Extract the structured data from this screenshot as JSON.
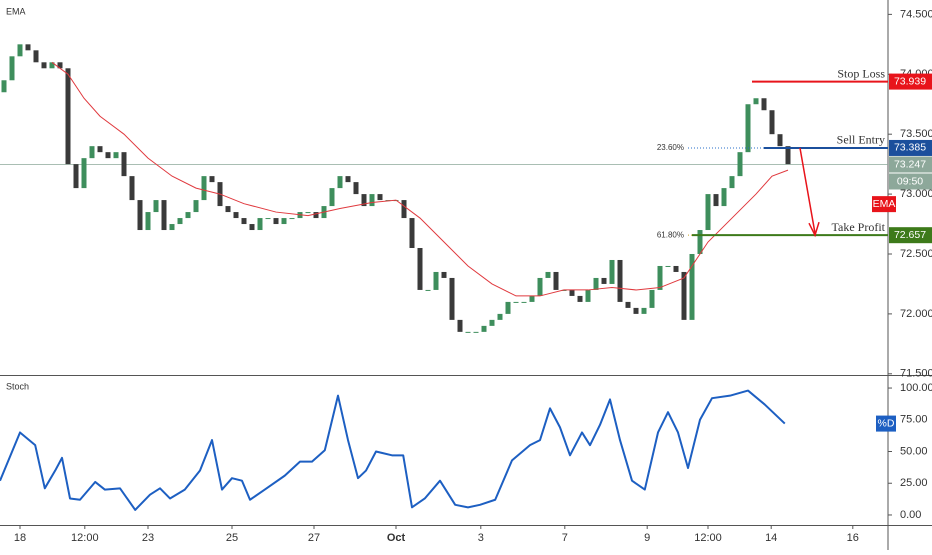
{
  "chart_data": {
    "type": "candlestick",
    "candles": {
      "up_color": "#3e8e5c",
      "down_color": "#3a3a3a",
      "open": [
        73.85,
        73.95,
        74.15,
        74.25,
        74.2,
        74.1,
        74.05,
        74.1,
        74.05,
        73.25,
        73.05,
        73.3,
        73.4,
        73.35,
        73.3,
        73.35,
        73.15,
        72.95,
        72.7,
        72.85,
        72.95,
        72.7,
        72.75,
        72.8,
        72.85,
        72.95,
        73.15,
        73.1,
        72.9,
        72.85,
        72.8,
        72.75,
        72.7,
        72.8,
        72.8,
        72.75,
        72.8,
        72.8,
        72.85,
        72.85,
        72.8,
        72.9,
        73.05,
        73.15,
        73.1,
        73.0,
        72.9,
        73.0,
        72.95,
        72.95,
        72.95,
        72.8,
        72.55,
        72.2,
        72.2,
        72.35,
        72.3,
        71.95,
        71.85,
        71.85,
        71.85,
        71.9,
        71.95,
        72.0,
        72.1,
        72.1,
        72.1,
        72.15,
        72.3,
        72.35,
        72.2,
        72.2,
        72.15,
        72.1,
        72.2,
        72.3,
        72.25,
        72.45,
        72.1,
        72.05,
        72.0,
        72.05,
        72.2,
        72.4,
        72.4,
        72.35,
        71.95,
        72.5,
        72.7,
        73.0,
        72.9,
        73.05,
        73.15,
        73.35,
        73.75,
        73.8,
        73.7,
        73.5,
        73.4
      ],
      "close": [
        73.95,
        74.15,
        74.25,
        74.2,
        74.1,
        74.05,
        74.1,
        74.05,
        73.25,
        73.05,
        73.3,
        73.4,
        73.35,
        73.3,
        73.35,
        73.15,
        72.95,
        72.7,
        72.85,
        72.95,
        72.7,
        72.75,
        72.8,
        72.85,
        72.95,
        73.15,
        73.1,
        72.9,
        72.85,
        72.8,
        72.75,
        72.7,
        72.8,
        72.8,
        72.75,
        72.8,
        72.8,
        72.85,
        72.85,
        72.8,
        72.9,
        73.05,
        73.15,
        73.1,
        73.0,
        72.9,
        73.0,
        72.95,
        72.95,
        72.95,
        72.8,
        72.55,
        72.2,
        72.2,
        72.35,
        72.3,
        71.95,
        71.85,
        71.85,
        71.85,
        71.9,
        71.95,
        72.0,
        72.1,
        72.1,
        72.1,
        72.15,
        72.3,
        72.35,
        72.2,
        72.2,
        72.15,
        72.1,
        72.2,
        72.3,
        72.25,
        72.45,
        72.1,
        72.05,
        72.0,
        72.05,
        72.2,
        72.4,
        72.4,
        72.35,
        71.95,
        72.5,
        72.7,
        73.0,
        72.9,
        73.05,
        73.15,
        73.35,
        73.75,
        73.8,
        73.7,
        73.5,
        73.4,
        73.25
      ]
    },
    "ema": {
      "name": "EMA",
      "color": "#e0393e",
      "x": [
        6,
        8,
        10,
        12,
        15,
        18,
        21,
        24,
        27,
        30,
        34,
        38,
        42,
        46,
        49,
        52,
        55,
        58,
        61,
        64,
        67,
        70,
        73,
        76,
        79,
        82,
        85,
        88,
        91,
        94,
        96,
        98
      ],
      "values": [
        74.1,
        74.0,
        73.8,
        73.65,
        73.5,
        73.3,
        73.15,
        73.05,
        73.0,
        72.92,
        72.85,
        72.82,
        72.88,
        72.93,
        72.95,
        72.8,
        72.6,
        72.4,
        72.25,
        72.15,
        72.15,
        72.2,
        72.2,
        72.22,
        72.2,
        72.22,
        72.3,
        72.6,
        72.8,
        73.0,
        73.15,
        73.2
      ]
    },
    "xlim": [
      -0.5,
      110.5
    ],
    "xticks": [
      {
        "value": 2,
        "label": "18"
      },
      {
        "value": 10.1,
        "label": "12:00"
      },
      {
        "value": 18,
        "label": "23"
      },
      {
        "value": 28.5,
        "label": "25"
      },
      {
        "value": 38.75,
        "label": "27"
      },
      {
        "value": 49,
        "label": "Oct"
      },
      {
        "value": 59.6,
        "label": "3"
      },
      {
        "value": 70.1,
        "label": "7"
      },
      {
        "value": 80.4,
        "label": "9"
      },
      {
        "value": 88,
        "label": "12:00"
      },
      {
        "value": 95.9,
        "label": "14"
      },
      {
        "value": 106.1,
        "label": "16"
      }
    ],
    "ylim": [
      71.49,
      74.62
    ],
    "yticks": [
      {
        "value": 74.5,
        "label": "74.500"
      },
      {
        "value": 74,
        "label": "74.000"
      },
      {
        "value": 73.5,
        "label": "73.500"
      },
      {
        "value": 73,
        "label": "73.000"
      },
      {
        "value": 72.5,
        "label": "72.500"
      },
      {
        "value": 72,
        "label": "72.000"
      },
      {
        "value": 71.5,
        "label": "71.500"
      }
    ],
    "levels": [
      {
        "name": "Stop Loss",
        "value": 73.939,
        "color": "#e8141b",
        "start": 93.5
      },
      {
        "name": "Sell Entry",
        "value": 73.385,
        "color": "#1b4f9c",
        "start": 95
      },
      {
        "name": "Take Profit",
        "value": 72.657,
        "color": "#3d7a1a",
        "start": 86
      }
    ],
    "fibs": [
      {
        "label": "23.60%",
        "value": 73.385,
        "color": "#2a6fc9"
      },
      {
        "label": "61.80%",
        "value": 72.657,
        "color": "#c9a227"
      }
    ],
    "current": {
      "value": 73.247,
      "countdown": "09:50",
      "color": "#8da89a"
    },
    "stoch": {
      "title": "Stoch",
      "name": "%D",
      "color": "#1d5fc2",
      "ylim": [
        -7.9,
        108.7
      ],
      "yticks": [
        {
          "value": 100,
          "label": "100.00"
        },
        {
          "value": 75,
          "label": "75.00"
        },
        {
          "value": 50,
          "label": "50.00"
        },
        {
          "value": 25,
          "label": "25.00"
        },
        {
          "value": 0,
          "label": "0.00"
        }
      ],
      "x": [
        -0.5,
        2,
        3.9,
        5.1,
        6.4,
        7.25,
        8.25,
        9.5,
        11.4,
        12.6,
        14.5,
        16.4,
        18.25,
        19.5,
        20.75,
        22.6,
        24.5,
        26,
        27.25,
        28.5,
        29.75,
        30.75,
        32.6,
        35.1,
        37,
        38.5,
        40.1,
        41.75,
        43,
        44.25,
        45.25,
        46.5,
        48.5,
        49.9,
        51,
        52.6,
        54.5,
        56.4,
        58,
        59.5,
        61.4,
        63.5,
        65.75,
        67,
        68.25,
        69.5,
        70.75,
        72.25,
        73.25,
        74.5,
        75.75,
        77,
        78.5,
        80.1,
        81.75,
        83,
        84.25,
        85.5,
        87,
        88.5,
        90.75,
        93,
        95.1,
        97.6
      ],
      "values": [
        27,
        65,
        55,
        21,
        35,
        45,
        13,
        12,
        26,
        20,
        21,
        4,
        16,
        21,
        13,
        20,
        35,
        59,
        20,
        29,
        27,
        12,
        20,
        31,
        42,
        42,
        51,
        94,
        59,
        29,
        35,
        50,
        47,
        47,
        6,
        13,
        27,
        8,
        6,
        8,
        12,
        43,
        55,
        59,
        84,
        69,
        47,
        65,
        55,
        71,
        91,
        59,
        27,
        20,
        65,
        81,
        65,
        37,
        75,
        92,
        94,
        98,
        87,
        72
      ]
    }
  }
}
